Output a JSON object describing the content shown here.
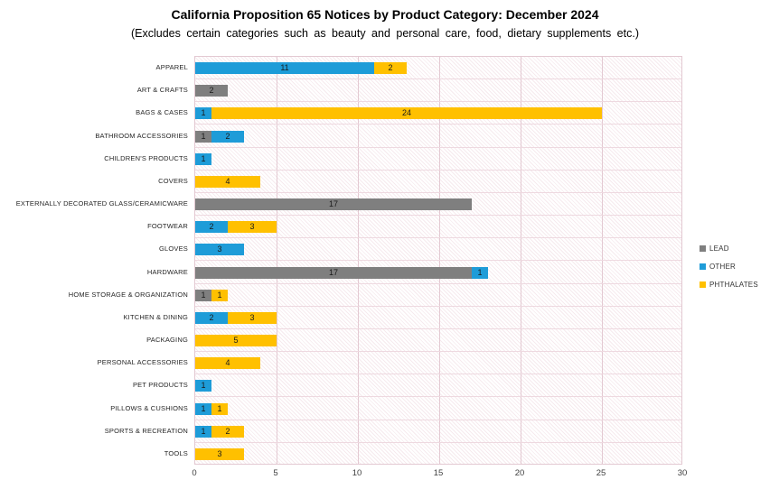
{
  "chart_data": {
    "type": "bar",
    "orientation": "horizontal",
    "stacked": true,
    "title": "California Proposition 65 Notices by Product Category: December 2024",
    "subtitle": "(Excludes certain categories such as beauty and personal care, food, dietary supplements etc.)",
    "categories": [
      "APPAREL",
      "ART & CRAFTS",
      "BAGS & CASES",
      "BATHROOM ACCESSORIES",
      "CHILDREN'S PRODUCTS",
      "COVERS",
      "EXTERNALLY DECORATED GLASS/CERAMICWARE",
      "FOOTWEAR",
      "GLOVES",
      "HARDWARE",
      "HOME STORAGE & ORGANIZATION",
      "KITCHEN & DINING",
      "PACKAGING",
      "PERSONAL ACCESSORIES",
      "PET PRODUCTS",
      "PILLOWS & CUSHIONS",
      "SPORTS & RECREATION",
      "TOOLS"
    ],
    "series": [
      {
        "name": "LEAD",
        "color": "#7F7F7F",
        "values": [
          0,
          2,
          0,
          1,
          0,
          0,
          17,
          0,
          0,
          17,
          1,
          0,
          0,
          0,
          0,
          0,
          0,
          0
        ]
      },
      {
        "name": "OTHER",
        "color": "#1E9CD8",
        "values": [
          11,
          0,
          1,
          2,
          1,
          0,
          0,
          2,
          3,
          1,
          0,
          2,
          0,
          0,
          1,
          1,
          1,
          0
        ]
      },
      {
        "name": "PHTHALATES",
        "color": "#FFC000",
        "values": [
          2,
          0,
          24,
          0,
          0,
          4,
          0,
          3,
          0,
          0,
          1,
          3,
          5,
          4,
          0,
          1,
          2,
          3
        ]
      }
    ],
    "xlim": [
      0,
      30
    ],
    "xticks": [
      "0",
      "5",
      "10",
      "15",
      "20",
      "25",
      "30"
    ],
    "grid": true,
    "data_labels": true,
    "legend_position": "right",
    "grid_color": "#e3c9d2",
    "plot_pattern_color": "#f0dde3"
  }
}
